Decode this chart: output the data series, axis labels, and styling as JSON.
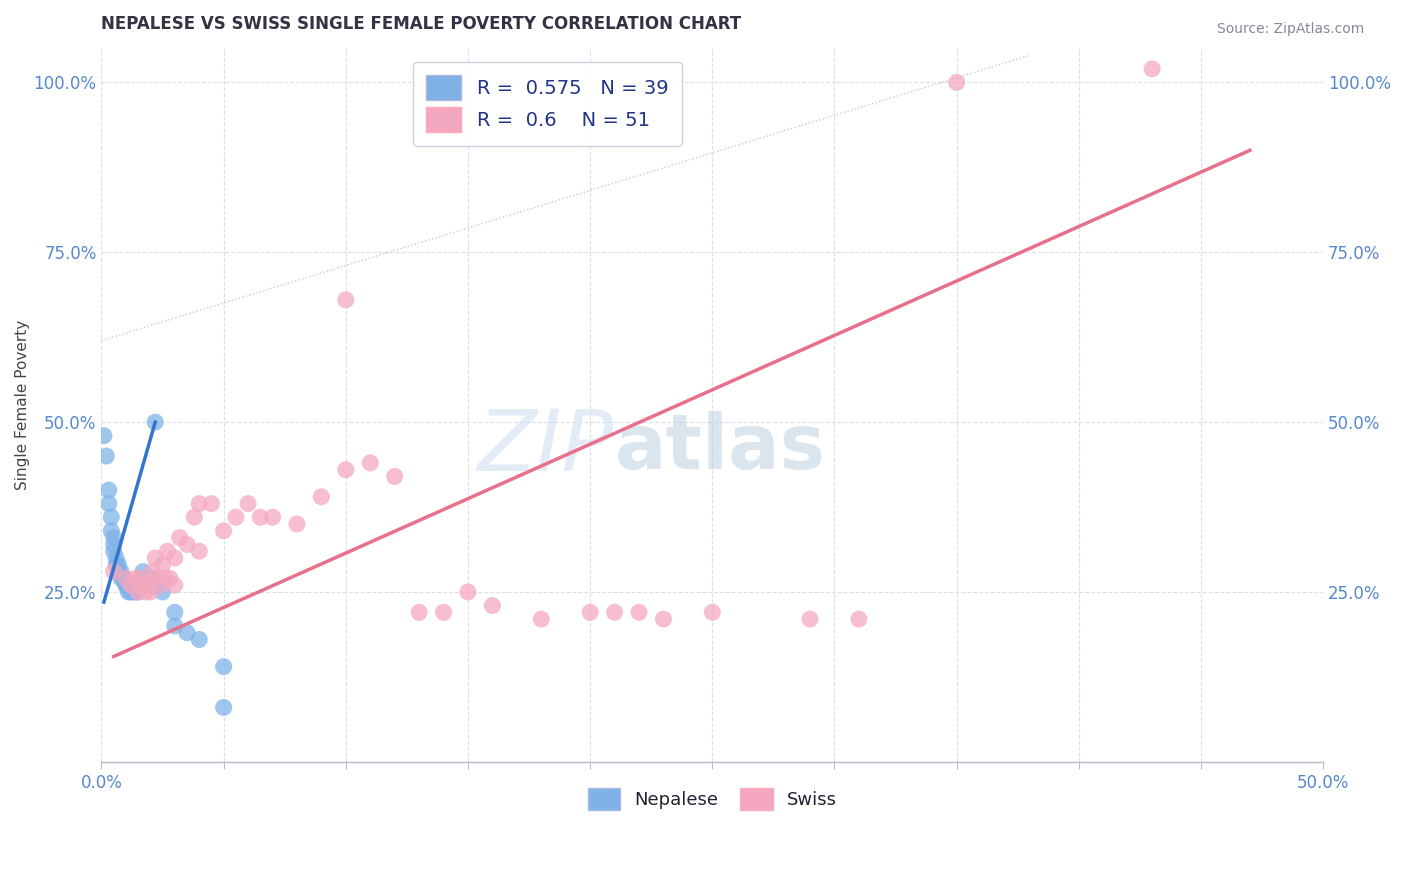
{
  "title": "NEPALESE VS SWISS SINGLE FEMALE POVERTY CORRELATION CHART",
  "source_text": "Source: ZipAtlas.com",
  "ylabel": "Single Female Poverty",
  "xlim": [
    0.0,
    0.5
  ],
  "ylim": [
    0.0,
    1.05
  ],
  "yticks": [
    0.0,
    0.25,
    0.5,
    0.75,
    1.0
  ],
  "xticks": [
    0.0,
    0.05,
    0.1,
    0.15,
    0.2,
    0.25,
    0.3,
    0.35,
    0.4,
    0.45,
    0.5
  ],
  "nepalese_color": "#7FB3E8",
  "swiss_color": "#F4A8C0",
  "nepalese_line_color": "#3375CC",
  "swiss_line_color": "#E8708A",
  "diagonal_color": "#AABFDD",
  "R_nepalese": 0.575,
  "N_nepalese": 39,
  "R_swiss": 0.6,
  "N_swiss": 51,
  "title_fontsize": 12,
  "tick_color": "#5588CC",
  "grid_color": "#DDDDEE",
  "nepalese_points": [
    [
      0.001,
      0.48
    ],
    [
      0.002,
      0.45
    ],
    [
      0.003,
      0.4
    ],
    [
      0.003,
      0.38
    ],
    [
      0.004,
      0.36
    ],
    [
      0.004,
      0.34
    ],
    [
      0.005,
      0.33
    ],
    [
      0.005,
      0.32
    ],
    [
      0.005,
      0.31
    ],
    [
      0.006,
      0.3
    ],
    [
      0.006,
      0.29
    ],
    [
      0.007,
      0.29
    ],
    [
      0.007,
      0.28
    ],
    [
      0.008,
      0.28
    ],
    [
      0.008,
      0.27
    ],
    [
      0.009,
      0.27
    ],
    [
      0.009,
      0.27
    ],
    [
      0.01,
      0.26
    ],
    [
      0.01,
      0.26
    ],
    [
      0.011,
      0.26
    ],
    [
      0.011,
      0.25
    ],
    [
      0.012,
      0.25
    ],
    [
      0.013,
      0.25
    ],
    [
      0.014,
      0.25
    ],
    [
      0.015,
      0.25
    ],
    [
      0.015,
      0.26
    ],
    [
      0.016,
      0.27
    ],
    [
      0.017,
      0.28
    ],
    [
      0.018,
      0.26
    ],
    [
      0.02,
      0.27
    ],
    [
      0.022,
      0.26
    ],
    [
      0.025,
      0.25
    ],
    [
      0.03,
      0.22
    ],
    [
      0.03,
      0.2
    ],
    [
      0.035,
      0.19
    ],
    [
      0.04,
      0.18
    ],
    [
      0.05,
      0.14
    ],
    [
      0.022,
      0.5
    ],
    [
      0.05,
      0.08
    ]
  ],
  "swiss_points": [
    [
      0.005,
      0.28
    ],
    [
      0.01,
      0.27
    ],
    [
      0.012,
      0.26
    ],
    [
      0.014,
      0.27
    ],
    [
      0.015,
      0.25
    ],
    [
      0.016,
      0.27
    ],
    [
      0.017,
      0.26
    ],
    [
      0.018,
      0.25
    ],
    [
      0.019,
      0.26
    ],
    [
      0.02,
      0.25
    ],
    [
      0.021,
      0.28
    ],
    [
      0.022,
      0.3
    ],
    [
      0.022,
      0.27
    ],
    [
      0.024,
      0.26
    ],
    [
      0.025,
      0.29
    ],
    [
      0.026,
      0.27
    ],
    [
      0.027,
      0.31
    ],
    [
      0.028,
      0.27
    ],
    [
      0.03,
      0.3
    ],
    [
      0.03,
      0.26
    ],
    [
      0.032,
      0.33
    ],
    [
      0.035,
      0.32
    ],
    [
      0.038,
      0.36
    ],
    [
      0.04,
      0.38
    ],
    [
      0.04,
      0.31
    ],
    [
      0.045,
      0.38
    ],
    [
      0.05,
      0.34
    ],
    [
      0.055,
      0.36
    ],
    [
      0.06,
      0.38
    ],
    [
      0.065,
      0.36
    ],
    [
      0.07,
      0.36
    ],
    [
      0.08,
      0.35
    ],
    [
      0.09,
      0.39
    ],
    [
      0.1,
      0.43
    ],
    [
      0.11,
      0.44
    ],
    [
      0.12,
      0.42
    ],
    [
      0.13,
      0.22
    ],
    [
      0.14,
      0.22
    ],
    [
      0.15,
      0.25
    ],
    [
      0.16,
      0.23
    ],
    [
      0.18,
      0.21
    ],
    [
      0.2,
      0.22
    ],
    [
      0.21,
      0.22
    ],
    [
      0.22,
      0.22
    ],
    [
      0.23,
      0.21
    ],
    [
      0.25,
      0.22
    ],
    [
      0.29,
      0.21
    ],
    [
      0.31,
      0.21
    ],
    [
      0.35,
      1.0
    ],
    [
      0.43,
      1.02
    ],
    [
      0.1,
      0.68
    ]
  ]
}
